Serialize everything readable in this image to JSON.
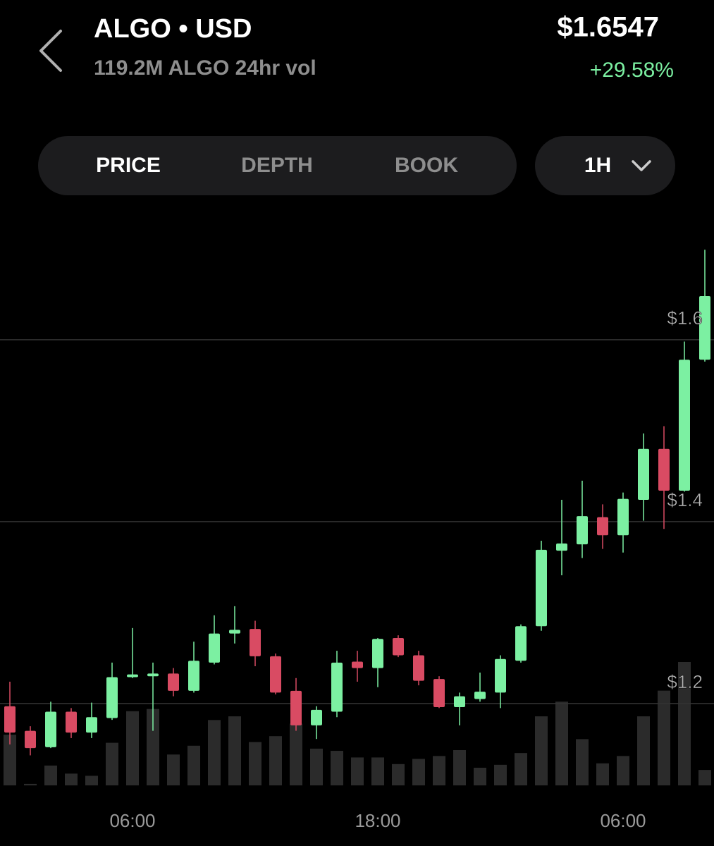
{
  "header": {
    "title": "ALGO • USD",
    "subtitle": "119.2M ALGO 24hr vol",
    "price": "$1.6547",
    "change": "+29.58%"
  },
  "tabs": [
    "PRICE",
    "DEPTH",
    "BOOK"
  ],
  "interval": "1H",
  "chart_data": {
    "type": "candlestick",
    "categories": [
      null,
      null,
      null,
      null,
      null,
      null,
      "06:00",
      null,
      null,
      null,
      null,
      null,
      null,
      null,
      null,
      null,
      null,
      null,
      "18:00",
      null,
      null,
      null,
      null,
      null,
      null,
      null,
      null,
      null,
      null,
      null,
      "06:00",
      null,
      null,
      null,
      null
    ],
    "open": [
      1.197,
      1.17,
      1.152,
      1.191,
      1.168,
      1.184,
      1.229,
      1.23,
      1.233,
      1.214,
      1.245,
      1.277,
      1.282,
      1.252,
      1.214,
      1.176,
      1.191,
      1.246,
      1.239,
      1.272,
      1.253,
      1.227,
      1.196,
      1.205,
      1.212,
      1.247,
      1.285,
      1.368,
      1.375,
      1.405,
      1.385,
      1.424,
      1.48,
      1.434,
      1.578
    ],
    "high": [
      1.224,
      1.175,
      1.202,
      1.195,
      1.201,
      1.245,
      1.283,
      1.245,
      1.239,
      1.268,
      1.297,
      1.307,
      1.291,
      1.255,
      1.228,
      1.197,
      1.258,
      1.258,
      1.272,
      1.275,
      1.258,
      1.23,
      1.212,
      1.234,
      1.253,
      1.287,
      1.379,
      1.424,
      1.445,
      1.419,
      1.432,
      1.497,
      1.505,
      1.598,
      1.699
    ],
    "low": [
      1.155,
      1.143,
      1.151,
      1.162,
      1.162,
      1.182,
      1.228,
      1.17,
      1.208,
      1.212,
      1.243,
      1.266,
      1.241,
      1.21,
      1.17,
      1.161,
      1.185,
      1.224,
      1.218,
      1.251,
      1.22,
      1.195,
      1.176,
      1.202,
      1.195,
      1.245,
      1.28,
      1.341,
      1.36,
      1.37,
      1.366,
      1.401,
      1.392,
      1.433,
      1.576
    ],
    "close": [
      1.168,
      1.151,
      1.191,
      1.168,
      1.185,
      1.229,
      1.232,
      1.233,
      1.214,
      1.247,
      1.277,
      1.281,
      1.252,
      1.212,
      1.176,
      1.193,
      1.245,
      1.239,
      1.271,
      1.253,
      1.225,
      1.196,
      1.208,
      1.213,
      1.249,
      1.285,
      1.369,
      1.376,
      1.406,
      1.385,
      1.425,
      1.48,
      1.434,
      1.578,
      1.648
    ],
    "volume": [
      69,
      2,
      27,
      16,
      13,
      58,
      101,
      104,
      42,
      54,
      89,
      94,
      59,
      67,
      84,
      50,
      47,
      38,
      38,
      29,
      36,
      40,
      48,
      24,
      28,
      44,
      94,
      114,
      63,
      30,
      40,
      94,
      129,
      168,
      21
    ],
    "up_color": "#7cf0a2",
    "down_color": "#d94b63",
    "volume_color": "#2b2b2b",
    "ylim": [
      1.11,
      1.71
    ],
    "yticks": [
      {
        "value": 1.2,
        "label": "$1.2"
      },
      {
        "value": 1.4,
        "label": "$1.4"
      },
      {
        "value": 1.6,
        "label": "$1.6"
      }
    ],
    "grid": true
  }
}
